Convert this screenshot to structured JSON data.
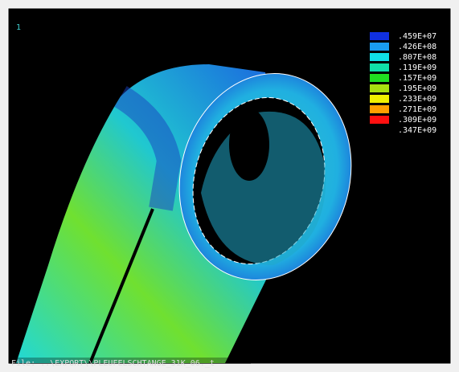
{
  "window_number": "1",
  "legend": {
    "labels": [
      ".459E+07",
      ".426E+08",
      ".807E+08",
      ".119E+09",
      ".157E+09",
      ".195E+09",
      ".233E+09",
      ".271E+09",
      ".309E+09",
      ".347E+09"
    ],
    "colors": [
      "#1030e0",
      "#1a9cf0",
      "#10e0e8",
      "#10e0a8",
      "#20e020",
      "#a8e010",
      "#f0f000",
      "#ffa000",
      "#ff1010"
    ]
  },
  "file_label": "File: ..\\EXPORT\\\\PLEUFELSCHTANGE_31K_06._t"
}
